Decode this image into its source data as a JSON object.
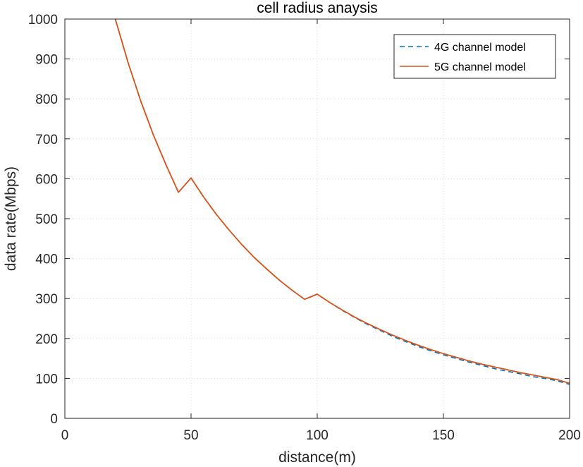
{
  "chart_data": {
    "type": "line",
    "title": "cell radius anaysis",
    "xlabel": "distance(m)",
    "ylabel": "data rate(Mbps)",
    "xlim": [
      0,
      200
    ],
    "ylim": [
      0,
      1000
    ],
    "xticks": [
      0,
      50,
      100,
      150,
      200
    ],
    "yticks": [
      0,
      100,
      200,
      300,
      400,
      500,
      600,
      700,
      800,
      900,
      1000
    ],
    "grid": true,
    "legend_position": "top-right",
    "x": [
      20,
      25,
      30,
      35,
      40,
      45,
      50,
      55,
      60,
      65,
      70,
      75,
      80,
      85,
      90,
      95,
      100,
      105,
      110,
      115,
      120,
      125,
      130,
      135,
      140,
      145,
      150,
      155,
      160,
      165,
      170,
      175,
      180,
      185,
      190,
      195,
      200
    ],
    "series": [
      {
        "name": "4G channel model",
        "color": "#0072BD",
        "style": "dashed",
        "values": [
          1000,
          892,
          796,
          711,
          636,
          566,
          602,
          554,
          511,
          472,
          436,
          403,
          374,
          346,
          321,
          298,
          311,
          290,
          270,
          252,
          235,
          220,
          205,
          192,
          180,
          169,
          159,
          150,
          141,
          133,
          125,
          118,
          112,
          105,
          100,
          94,
          85
        ]
      },
      {
        "name": "5G channel model",
        "color": "#D95319",
        "style": "solid",
        "values": [
          1000,
          892,
          796,
          711,
          636,
          566,
          602,
          554,
          511,
          472,
          436,
          403,
          374,
          346,
          321,
          298,
          311,
          290,
          271,
          253,
          237,
          222,
          208,
          195,
          183,
          172,
          162,
          153,
          144,
          136,
          129,
          122,
          115,
          109,
          103,
          97,
          88
        ]
      }
    ]
  }
}
